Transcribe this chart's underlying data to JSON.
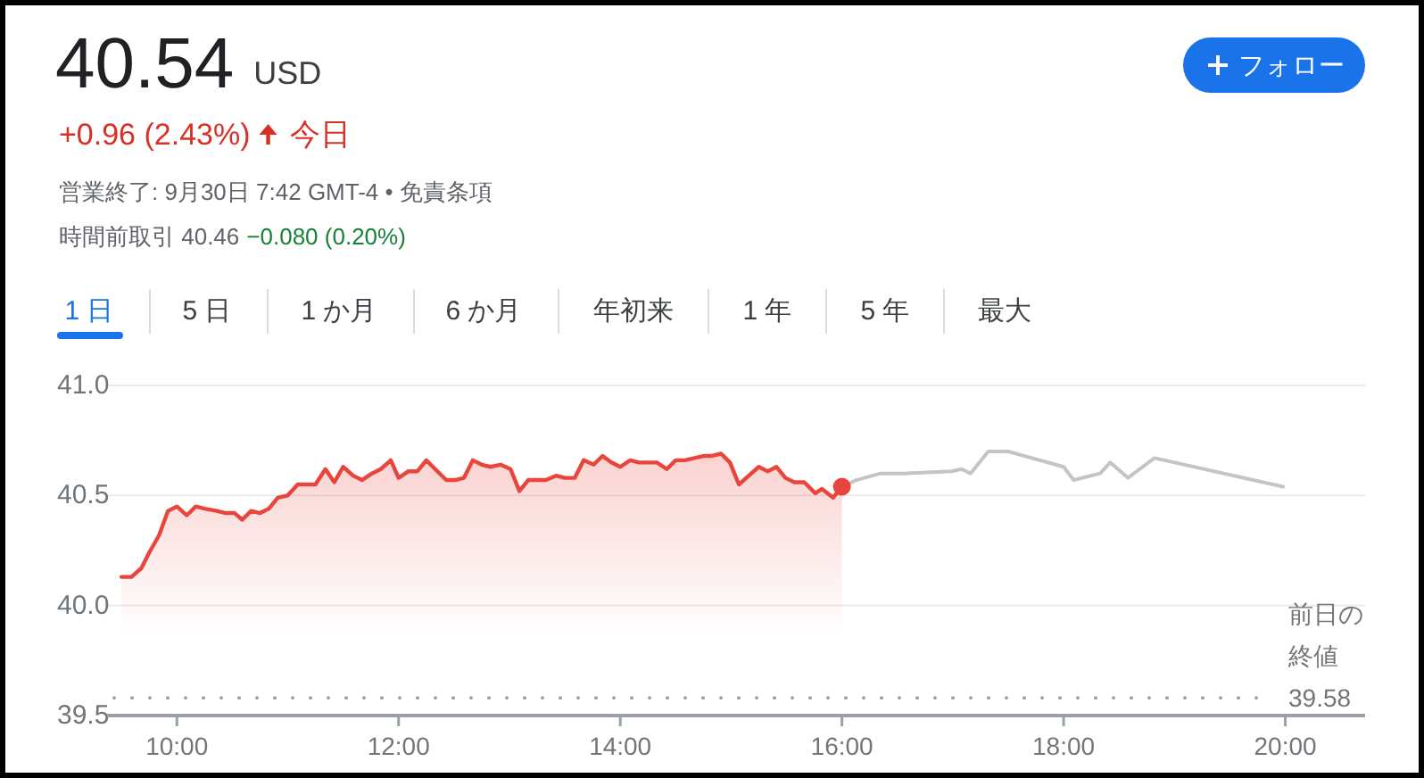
{
  "chart_data": {
    "type": "area",
    "title": "40.54",
    "annotations": [
      "USD",
      "+0.96 (2.43%)",
      "今日",
      "営業終了: 9月30日 7:42 GMT-4 • 免責条項",
      "時間前取引 40.46",
      "−0.080 (0.20%)",
      "1 日",
      "5 日",
      "1 か月",
      "6 か月",
      "年初来",
      "1 年",
      "5 年",
      "最大",
      "フォロー"
    ],
    "series": [
      {
        "color": "#e8453c",
        "x": [
          9.5,
          9.59,
          9.68,
          9.75,
          9.84,
          9.92,
          10.0,
          10.09,
          10.17,
          10.25,
          10.36,
          10.44,
          10.52,
          10.59,
          10.67,
          10.75,
          10.83,
          10.91,
          11.0,
          11.09,
          11.25,
          11.34,
          11.42,
          11.5,
          11.59,
          11.67,
          11.76,
          11.84,
          11.93,
          12.0,
          12.09,
          12.17,
          12.25,
          12.33,
          12.43,
          12.51,
          12.59,
          12.67,
          12.75,
          12.83,
          12.92,
          13.01,
          13.09,
          13.17,
          13.33,
          13.42,
          13.5,
          13.59,
          13.67,
          13.76,
          13.84,
          13.92,
          14.0,
          14.09,
          14.17,
          14.33,
          14.42,
          14.5,
          14.58,
          14.67,
          14.76,
          14.83,
          14.91,
          14.99,
          15.07,
          15.16,
          15.25,
          15.33,
          15.41,
          15.49,
          15.57,
          15.66,
          15.76,
          15.82,
          15.92,
          16.0
        ],
        "values": [
          40.13,
          40.13,
          40.17,
          40.24,
          40.32,
          40.43,
          40.45,
          40.41,
          40.45,
          40.44,
          40.43,
          40.42,
          40.42,
          40.39,
          40.43,
          40.42,
          40.44,
          40.49,
          40.5,
          40.55,
          40.55,
          40.62,
          40.56,
          40.63,
          40.59,
          40.57,
          40.6,
          40.62,
          40.66,
          40.58,
          40.61,
          40.61,
          40.66,
          40.62,
          40.57,
          40.57,
          40.58,
          40.66,
          40.64,
          40.63,
          40.64,
          40.62,
          40.52,
          40.57,
          40.57,
          40.59,
          40.58,
          40.58,
          40.66,
          40.64,
          40.68,
          40.65,
          40.63,
          40.66,
          40.65,
          40.65,
          40.62,
          40.66,
          40.66,
          40.67,
          40.68,
          40.68,
          40.69,
          40.65,
          40.55,
          40.59,
          40.63,
          40.61,
          40.63,
          40.58,
          40.56,
          40.56,
          40.51,
          40.53,
          40.49,
          40.54
        ]
      },
      {
        "type": "line",
        "color": "#c4c4c4",
        "x": [
          16.0,
          16.13,
          16.35,
          16.56,
          16.99,
          17.08,
          17.16,
          17.32,
          17.5,
          18.0,
          18.09,
          18.33,
          18.42,
          18.58,
          18.82,
          19.98
        ],
        "values": [
          40.54,
          40.57,
          40.6,
          40.6,
          40.61,
          40.62,
          40.6,
          40.7,
          40.7,
          40.63,
          40.57,
          40.6,
          40.65,
          40.58,
          40.67,
          40.54
        ]
      },
      {
        "type": "scatter",
        "color": "#e8453c",
        "x": [
          16.0
        ],
        "values": [
          40.54
        ]
      }
    ],
    "xlim": [
      9.37,
      20.72
    ],
    "xticks": [
      {
        "value": 10,
        "label": "10:00"
      },
      {
        "value": 12,
        "label": "12:00"
      },
      {
        "value": 14,
        "label": "14:00"
      },
      {
        "value": 16,
        "label": "16:00"
      },
      {
        "value": 18,
        "label": "18:00"
      },
      {
        "value": 20,
        "label": "20:00"
      }
    ],
    "ylim": [
      39.5,
      41.0
    ],
    "yticks": [
      39.5,
      {
        "value": 40,
        "label": "40.0"
      },
      40.5,
      {
        "value": 41,
        "label": "41.0"
      }
    ],
    "ref_lines": [
      {
        "axis": "y",
        "value": 39.58,
        "label": "前日の終値 39.58",
        "line_style": "dotted",
        "color": "#9aa0a6"
      }
    ],
    "grid": "y"
  }
}
